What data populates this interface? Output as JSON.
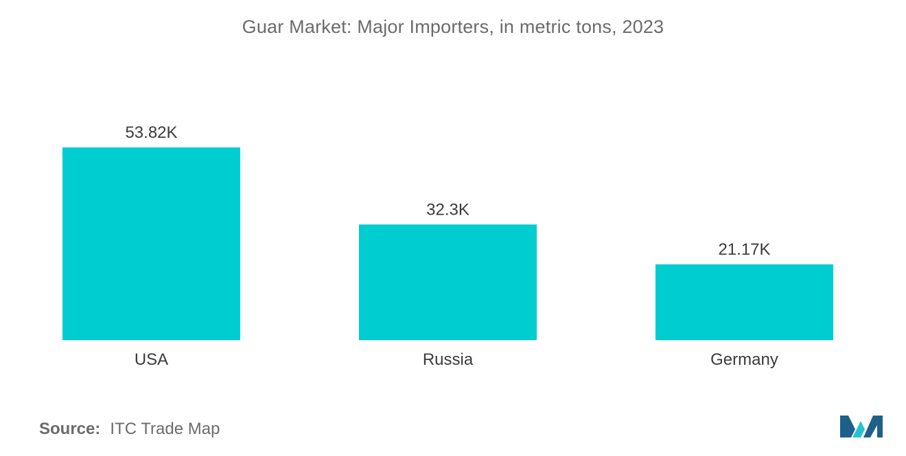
{
  "colors": {
    "bar": "#00cdd0",
    "text": "#3b3b3b",
    "muted": "#6b6b6b",
    "logo_dark": "#1f5f8b",
    "logo_light": "#27c3cc"
  },
  "chart_data": {
    "type": "bar",
    "title": "Guar Market: Major Importers, in metric tons, 2023",
    "xlabel": "",
    "ylabel": "",
    "categories": [
      "USA",
      "Russia",
      "Germany"
    ],
    "values": [
      53.82,
      32.3,
      21.17
    ],
    "value_labels": [
      "53.82K",
      "32.3K",
      "21.17K"
    ],
    "unit": "K metric tons",
    "ylim": [
      0,
      53.82
    ],
    "grid": false,
    "legend": "none"
  },
  "source": {
    "label": "Source:",
    "text": "ITC Trade Map"
  },
  "logo": {
    "icon": "mordor-intelligence-logo-icon"
  }
}
